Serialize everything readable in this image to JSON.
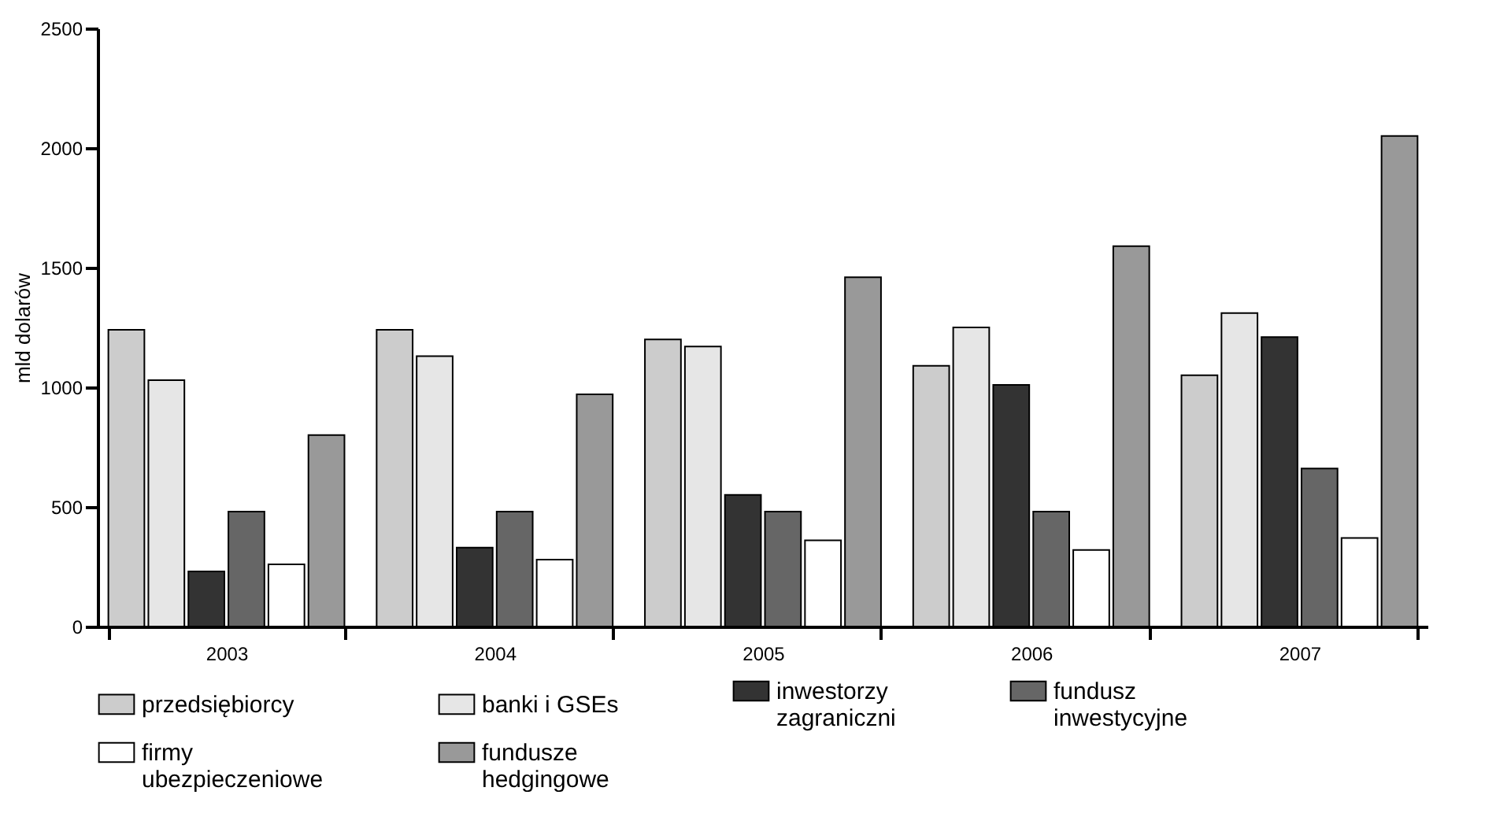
{
  "chart_data": {
    "type": "bar",
    "ylabel": "mld dolarów",
    "categories": [
      "2003",
      "2004",
      "2005",
      "2006",
      "2007"
    ],
    "series": [
      {
        "name": "przedsiębiorcy",
        "color": "#cccccc",
        "values": [
          1240,
          1240,
          1200,
          1090,
          1050
        ]
      },
      {
        "name": "banki i GSEs",
        "color": "#e6e6e6",
        "values": [
          1030,
          1130,
          1170,
          1250,
          1310
        ]
      },
      {
        "name": "inwestorzy zagraniczni",
        "color": "#333333",
        "values": [
          230,
          330,
          550,
          1010,
          1210
        ]
      },
      {
        "name": "fundusz inwestycyjne",
        "color": "#666666",
        "values": [
          480,
          480,
          480,
          480,
          660
        ]
      },
      {
        "name": "firmy ubezpieczeniowe",
        "color": "#ffffff",
        "values": [
          260,
          280,
          360,
          320,
          370
        ]
      },
      {
        "name": "fundusze hedgingowe",
        "color": "#999999",
        "values": [
          800,
          970,
          1460,
          1590,
          2050
        ]
      }
    ],
    "ylim": [
      0,
      2500
    ],
    "yticks": [
      0,
      500,
      1000,
      1500,
      2000,
      2500
    ],
    "grid": false,
    "legend": "bottom"
  }
}
